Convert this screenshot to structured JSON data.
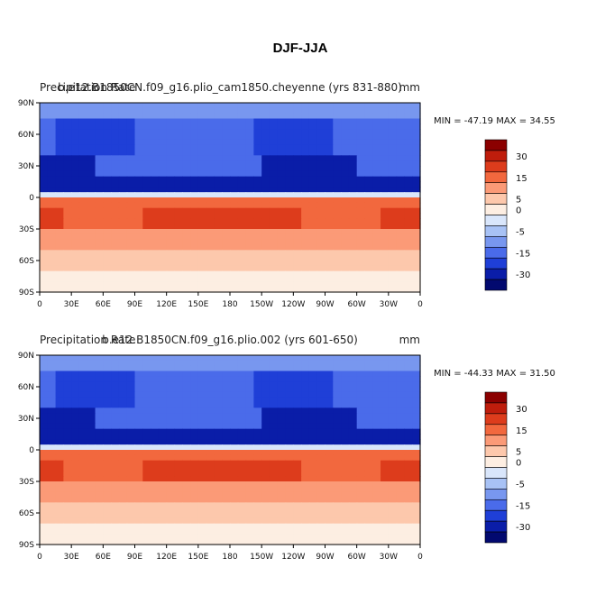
{
  "figure_title": "DJF-JJA",
  "chart_data": [
    {
      "type": "heatmap",
      "subtype": "global contour map",
      "title_left": "Precipitation Rate",
      "title_center": "b.e12.B1850CN.f09_g16.plio_cam1850.cheyenne (yrs 831-880)",
      "title_right": "mm",
      "stats": "MIN = -47.19 MAX =  34.55",
      "min": -47.19,
      "max": 34.55,
      "xlabels": [
        "0",
        "30E",
        "60E",
        "90E",
        "120E",
        "150E",
        "180",
        "150W",
        "120W",
        "90W",
        "60W",
        "30W",
        "0"
      ],
      "ylabels": [
        "90N",
        "60N",
        "30N",
        "0",
        "30S",
        "60S",
        "90S"
      ],
      "colorbar_levels": [
        "30",
        "15",
        "5",
        "0",
        "-5",
        "-15",
        "-30"
      ],
      "pattern": "negative (blue) across northern hemisphere, positive (red) across southern hemisphere subtropics"
    },
    {
      "type": "heatmap",
      "subtype": "global contour map",
      "title_left": "Precipitation Rate",
      "title_center": "b.e12.B1850CN.f09_g16.plio.002 (yrs 601-650)",
      "title_right": "mm",
      "stats": "MIN = -44.33 MAX =  31.50",
      "min": -44.33,
      "max": 31.5,
      "xlabels": [
        "0",
        "30E",
        "60E",
        "90E",
        "120E",
        "150E",
        "180",
        "150W",
        "120W",
        "90W",
        "60W",
        "30W",
        "0"
      ],
      "ylabels": [
        "90N",
        "60N",
        "30N",
        "0",
        "30S",
        "60S",
        "90S"
      ],
      "colorbar_levels": [
        "30",
        "15",
        "5",
        "0",
        "-5",
        "-15",
        "-30"
      ],
      "pattern": "negative (blue) across northern hemisphere, positive (red) across southern hemisphere subtropics"
    }
  ],
  "colors": {
    "colorbar": [
      "#8b0000",
      "#bf1d0c",
      "#dd3c1c",
      "#f2683e",
      "#fb9a77",
      "#fdc8ac",
      "#fdeee2",
      "#d9e6fb",
      "#a8c2f5",
      "#7897ef",
      "#4a6bea",
      "#1f3fd7",
      "#0a1da8",
      "#02096f"
    ]
  }
}
